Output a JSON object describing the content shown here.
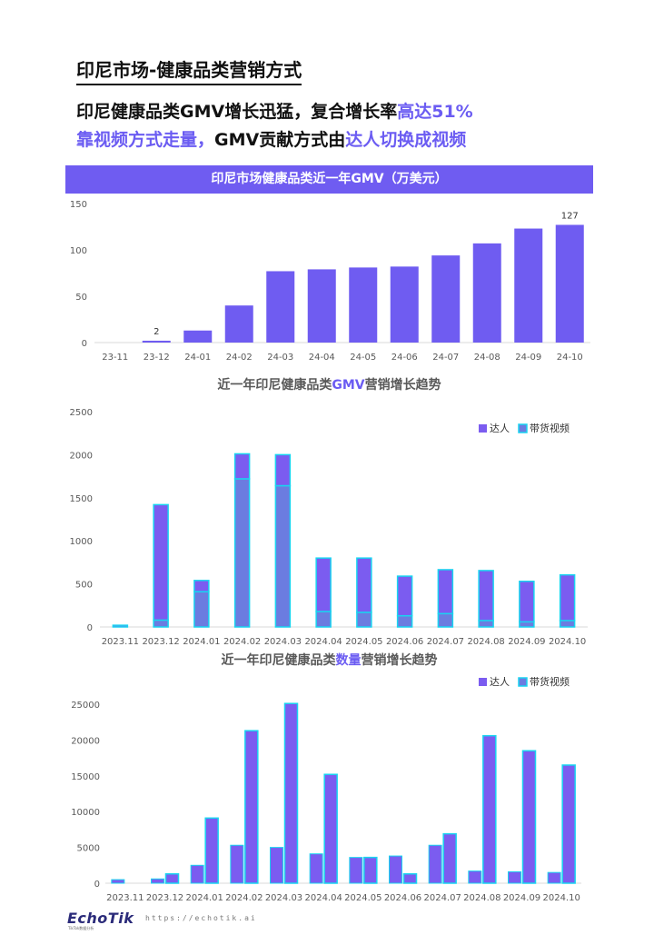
{
  "page": {
    "title": "印尼市场-健康品类营销方式",
    "headline_line1_plain": "印尼健康品类GMV增长迅猛，复合增长率",
    "headline_line1_hl": "高达51%",
    "headline_line2_hl1": "靠视频方式走量，",
    "headline_line2_plain": "GMV贡献方式由",
    "headline_line2_hl2": "达人切换成视频"
  },
  "colors": {
    "accent": "#6f5cf1",
    "creator_bar": "#7b5cf0",
    "video_bar": "#6b7ce0",
    "video_border": "#19d4f0",
    "axis": "#d9d9d9",
    "tick_text": "#595959"
  },
  "chart_data": [
    {
      "type": "bar",
      "title": "印尼市场健康品类近一年GMV（万美元）",
      "categories": [
        "23-11",
        "23-12",
        "24-01",
        "24-02",
        "24-03",
        "24-04",
        "24-05",
        "24-06",
        "24-07",
        "24-08",
        "24-09",
        "24-10"
      ],
      "values": [
        0,
        2,
        13,
        40,
        77,
        79,
        81,
        82,
        94,
        107,
        123,
        127
      ],
      "data_labels": [
        {
          "category": "23-12",
          "text": "2"
        },
        {
          "category": "24-10",
          "text": "127"
        }
      ],
      "yticks": [
        "0",
        "50",
        "100",
        "150"
      ],
      "ylim": [
        0,
        150
      ],
      "grid": false
    },
    {
      "type": "bar",
      "stacked": true,
      "title_parts": [
        "近一年印尼健康品类",
        "GMV",
        "营销增长趋势"
      ],
      "categories": [
        "2023.11",
        "2023.12",
        "2024.01",
        "2024.02",
        "2024.03",
        "2024.04",
        "2024.05",
        "2024.06",
        "2024.07",
        "2024.08",
        "2024.09",
        "2024.10"
      ],
      "series": [
        {
          "name": "达人",
          "values": [
            20,
            1340,
            130,
            290,
            360,
            620,
            630,
            460,
            510,
            580,
            470,
            530
          ]
        },
        {
          "name": "带货视频",
          "values": [
            0,
            80,
            410,
            1720,
            1640,
            180,
            170,
            130,
            155,
            75,
            60,
            75
          ]
        }
      ],
      "yticks": [
        "0",
        "500",
        "1000",
        "1500",
        "2000",
        "2500"
      ],
      "ylim": [
        0,
        2500
      ],
      "legend": "top-right",
      "grid": false
    },
    {
      "type": "bar",
      "grouped": true,
      "title_parts": [
        "近一年印尼健康品类",
        "数量",
        "营销增长趋势"
      ],
      "categories": [
        "2023.11",
        "2023.12",
        "2024.01",
        "2024.02",
        "2024.03",
        "2024.04",
        "2024.05",
        "2024.06",
        "2024.07",
        "2024.08",
        "2024.09",
        "2024.10"
      ],
      "series": [
        {
          "name": "达人",
          "values": [
            500,
            600,
            2500,
            5300,
            5000,
            4100,
            3600,
            3800,
            5300,
            1700,
            1600,
            1500
          ]
        },
        {
          "name": "带货视频",
          "values": [
            0,
            1300,
            9100,
            21300,
            25100,
            15200,
            3600,
            1300,
            6900,
            20600,
            18500,
            16500
          ]
        }
      ],
      "yticks": [
        "0",
        "5000",
        "10000",
        "15000",
        "20000",
        "25000"
      ],
      "ylim": [
        0,
        25000
      ],
      "legend": "top-right",
      "grid": false
    }
  ],
  "footer": {
    "logo": "EchoTik",
    "logo_sub": "TikTok数据分析",
    "url": "https://echotik.ai"
  }
}
